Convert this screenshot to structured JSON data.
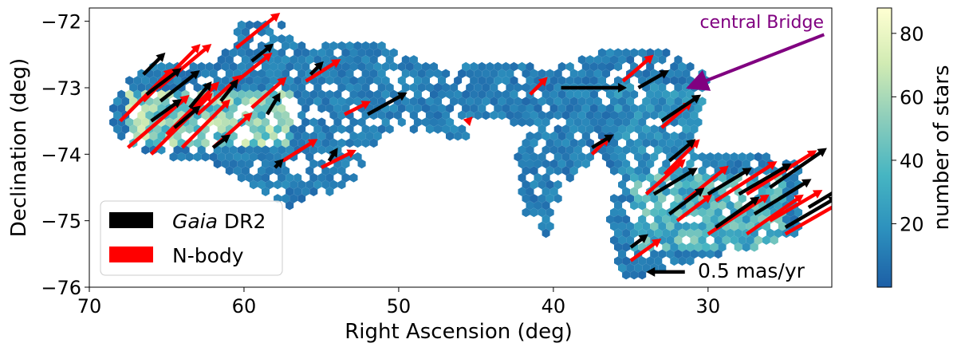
{
  "chart_data": {
    "type": "hexbin",
    "xlabel": "Right Ascension (deg)",
    "ylabel": "Declination (deg)",
    "xlim": [
      70,
      22
    ],
    "ylim": [
      -76,
      -71.8
    ],
    "xticks": [
      70,
      60,
      50,
      40,
      30
    ],
    "xtick_labels": [
      "70",
      "60",
      "50",
      "40",
      "30"
    ],
    "yticks": [
      -72,
      -73,
      -74,
      -75,
      -76
    ],
    "ytick_labels": [
      "−72",
      "−73",
      "−74",
      "−75",
      "−76"
    ],
    "colorbar": {
      "label": "number of stars",
      "range": [
        0,
        88
      ],
      "ticks": [
        20,
        40,
        60,
        80
      ],
      "tick_labels": [
        "20",
        "40",
        "60",
        "80"
      ],
      "colormap": "YlGnBu_r",
      "stops": [
        "#1d5fa6",
        "#2c8fbd",
        "#46b5c2",
        "#8ccdbb",
        "#d1ebb3",
        "#ffffd2"
      ]
    },
    "legend": {
      "position": "lower-left",
      "entries": [
        {
          "label_italic": "Gaia",
          "label": " DR2",
          "color": "#000000"
        },
        {
          "label_italic": "",
          "label": "N-body",
          "color": "#ff0000"
        }
      ]
    },
    "annotation": {
      "text": "central Bridge",
      "color": "#800080",
      "arrow_tail": [
        22.5,
        -72.2
      ],
      "arrow_head": [
        31.3,
        -73.0
      ]
    },
    "scale_arrow": {
      "label": "0.5 mas/yr",
      "tail": [
        31.5,
        -75.77
      ],
      "head": [
        34.0,
        -75.77
      ]
    },
    "density_regions": [
      {
        "ra_min": 57,
        "ra_max": 67.5,
        "dec_min": -73.9,
        "dec_max": -73.0,
        "level": 55
      },
      {
        "ra_min": 25,
        "ra_max": 35,
        "dec_min": -75.5,
        "dec_max": -74.3,
        "level": 40
      },
      {
        "ra_min": 30,
        "ra_max": 36,
        "dec_min": -74.3,
        "dec_max": -72.9,
        "level": 20
      },
      {
        "ra_min": 51,
        "ra_max": 61,
        "dec_min": -74.4,
        "dec_max": -72.4,
        "level": 12
      }
    ],
    "series": [
      {
        "name": "Gaia DR2",
        "color": "#000000",
        "vectors": [
          [
            66.3,
            -73.1,
            0.8,
            0.6
          ],
          [
            66.0,
            -73.5,
            0.7,
            0.5
          ],
          [
            65.4,
            -73.2,
            0.9,
            0.7
          ],
          [
            64.5,
            -73.6,
            0.6,
            0.5
          ],
          [
            63.5,
            -73.3,
            0.5,
            0.6
          ],
          [
            66.5,
            -72.8,
            0.5,
            0.5
          ],
          [
            61.5,
            -73.2,
            0.4,
            0.5
          ],
          [
            58.5,
            -73.4,
            0.3,
            0.5
          ],
          [
            62.0,
            -73.9,
            0.4,
            0.3
          ],
          [
            59.5,
            -72.6,
            0.5,
            0.4
          ],
          [
            55.7,
            -72.8,
            0.3,
            0.3
          ],
          [
            52.0,
            -73.4,
            0.9,
            0.5
          ],
          [
            58.0,
            -74.2,
            0.2,
            0.2
          ],
          [
            54.5,
            -74.1,
            0.2,
            0.3
          ],
          [
            39.5,
            -73.0,
            1.5,
            0.0
          ],
          [
            37.5,
            -73.9,
            0.5,
            0.3
          ],
          [
            34.5,
            -73.0,
            0.7,
            0.4
          ],
          [
            33.0,
            -73.5,
            0.9,
            0.6
          ],
          [
            32.5,
            -74.1,
            0.6,
            0.5
          ],
          [
            33.5,
            -74.6,
            1.0,
            0.6
          ],
          [
            30.0,
            -74.6,
            1.0,
            0.6
          ],
          [
            28.0,
            -74.6,
            1.2,
            0.7
          ],
          [
            26.0,
            -74.5,
            1.3,
            0.9
          ],
          [
            29.5,
            -75.1,
            1.0,
            0.7
          ],
          [
            27.0,
            -74.9,
            1.3,
            0.8
          ],
          [
            25.0,
            -75.1,
            1.2,
            0.7
          ],
          [
            35.0,
            -75.4,
            0.4,
            0.3
          ],
          [
            32.5,
            -74.9,
            0.8,
            0.6
          ],
          [
            23.5,
            -74.8,
            1.0,
            0.6
          ]
        ]
      },
      {
        "name": "N-body",
        "color": "#ff0000",
        "vectors": [
          [
            68.0,
            -73.5,
            1.2,
            1.2
          ],
          [
            67.5,
            -73.9,
            1.4,
            1.2
          ],
          [
            66.0,
            -74.0,
            1.4,
            1.4
          ],
          [
            66.5,
            -73.2,
            1.3,
            1.3
          ],
          [
            65.0,
            -73.7,
            1.2,
            1.2
          ],
          [
            64.0,
            -73.9,
            1.1,
            1.1
          ],
          [
            63.0,
            -73.4,
            1.0,
            0.9
          ],
          [
            65.5,
            -73.0,
            1.2,
            1.0
          ],
          [
            62.0,
            -73.9,
            0.9,
            0.8
          ],
          [
            61.0,
            -73.0,
            1.0,
            0.8
          ],
          [
            60.5,
            -72.4,
            1.0,
            0.8
          ],
          [
            59.5,
            -73.3,
            0.8,
            0.7
          ],
          [
            56.0,
            -72.9,
            0.8,
            0.5
          ],
          [
            53.5,
            -73.4,
            0.6,
            0.3
          ],
          [
            57.5,
            -74.1,
            0.8,
            0.5
          ],
          [
            55.0,
            -74.2,
            0.8,
            0.4
          ],
          [
            41.5,
            -73.1,
            0.4,
            0.4
          ],
          [
            45.5,
            -73.5,
            0.1,
            0.1
          ],
          [
            37.5,
            -74.0,
            0.4,
            0.4
          ],
          [
            35.5,
            -72.9,
            0.7,
            0.6
          ],
          [
            33.0,
            -73.6,
            0.7,
            0.6
          ],
          [
            32.8,
            -74.3,
            0.8,
            0.8
          ],
          [
            34.0,
            -74.6,
            0.9,
            0.8
          ],
          [
            31.5,
            -74.7,
            1.0,
            0.8
          ],
          [
            29.5,
            -74.7,
            1.4,
            0.9
          ],
          [
            27.5,
            -74.6,
            1.6,
            1.0
          ],
          [
            30.0,
            -75.2,
            1.4,
            0.9
          ],
          [
            27.5,
            -75.2,
            1.3,
            0.9
          ],
          [
            26.0,
            -75.0,
            1.2,
            0.7
          ],
          [
            25.0,
            -75.2,
            1.4,
            0.8
          ],
          [
            35.0,
            -75.6,
            0.7,
            0.5
          ],
          [
            32.0,
            -75.0,
            0.8,
            0.6
          ]
        ]
      }
    ]
  }
}
